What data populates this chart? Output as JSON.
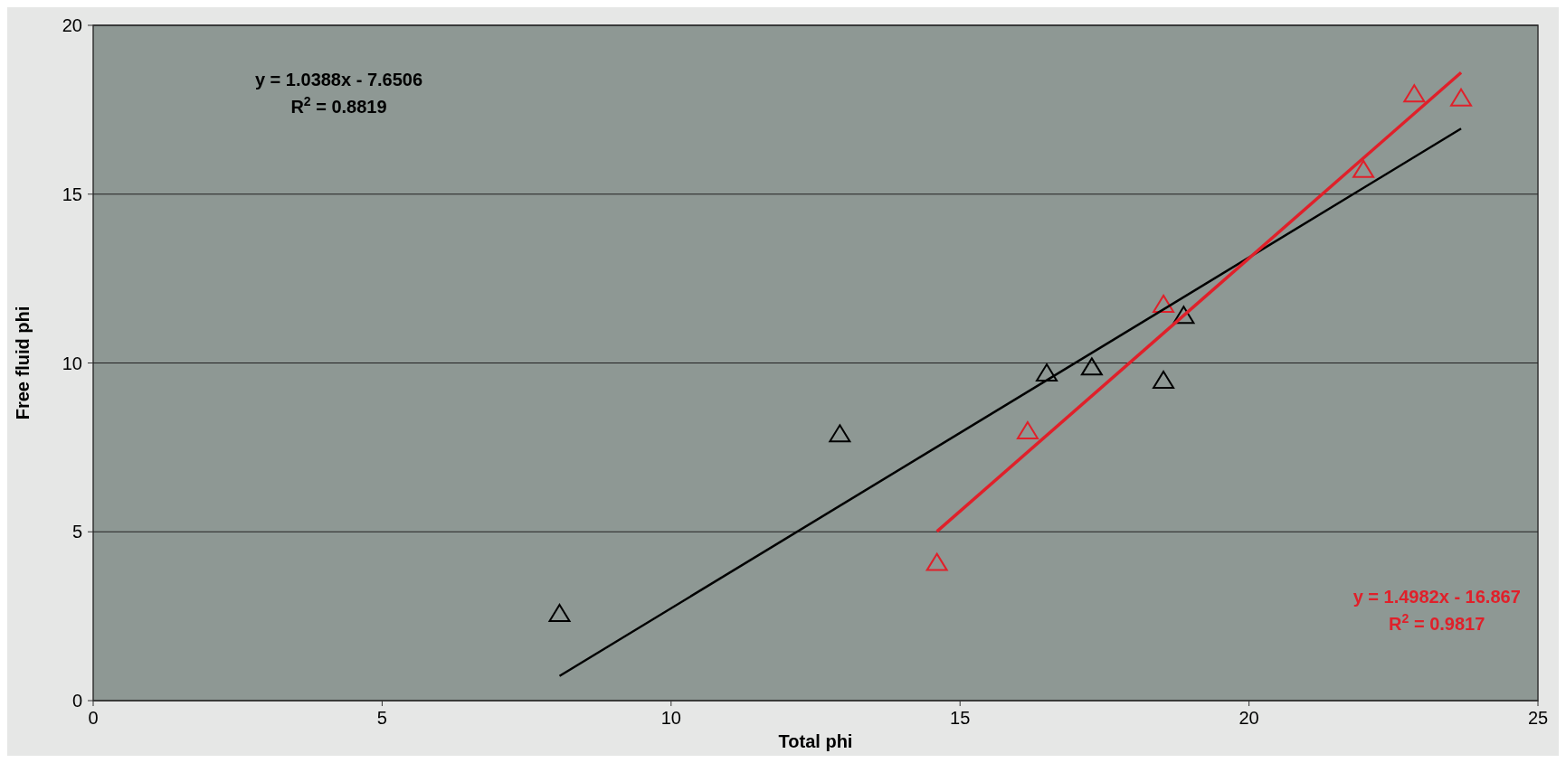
{
  "chart_data": {
    "type": "scatter",
    "xlabel": "Total phi",
    "ylabel": "Free fluid phi",
    "xlim": [
      0,
      25
    ],
    "ylim": [
      0,
      20
    ],
    "xticks": [
      0,
      5,
      10,
      15,
      20,
      25
    ],
    "yticks": [
      0,
      5,
      10,
      15,
      20
    ],
    "grid": "y",
    "marker": "triangle",
    "series": [
      {
        "color": "#000000",
        "x": [
          8.07,
          12.92,
          16.5,
          17.28,
          18.52,
          18.87
        ],
        "values": [
          2.57,
          7.89,
          9.69,
          9.87,
          9.48,
          11.4
        ]
      },
      {
        "color": "#e0202a",
        "x": [
          14.6,
          16.17,
          18.52,
          21.98,
          22.86,
          23.67
        ],
        "values": [
          4.08,
          7.98,
          11.73,
          15.72,
          17.96,
          17.84
        ]
      },
      {
        "type": "line",
        "marker": "none",
        "color": "#000000",
        "x": [
          8.07,
          23.67
        ],
        "values": [
          0.73,
          16.94
        ]
      },
      {
        "type": "line",
        "marker": "none",
        "color": "#e0202a",
        "x": [
          14.6,
          23.67
        ],
        "values": [
          5.01,
          18.6
        ]
      }
    ],
    "annotations": [
      "y = 1.0388x - 7.6506",
      "R$^{2}$ = 0.8819",
      "y = 1.4982x - 16.867",
      "R$^{2}$ = 0.9817"
    ]
  }
}
